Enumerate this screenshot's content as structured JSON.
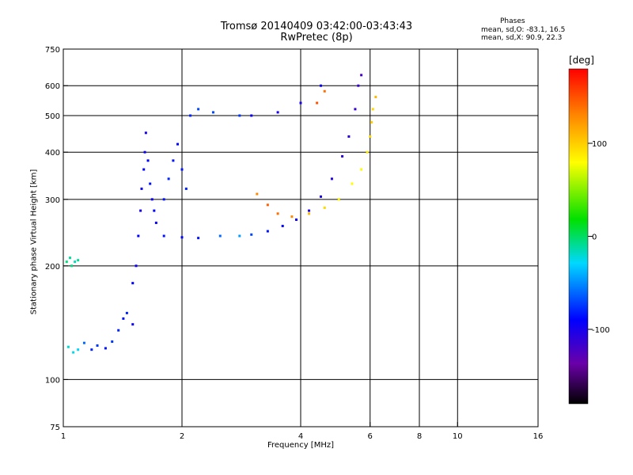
{
  "title": "Tromsø 20140409 03:42:00-03:43:43",
  "subtitle": "RwPretec (8p)",
  "stats": {
    "title": "Phases",
    "o_line": "mean, sd,O: -83.1, 16.5",
    "x_line": "mean, sd,X:  90.9, 22.3"
  },
  "colorbar": {
    "label": "[deg]",
    "range": [
      -180,
      180
    ],
    "ticks": [
      100,
      0,
      -100
    ],
    "colormap": "rainbow (black-purple-blue-cyan-green-yellow-red)"
  },
  "chart_data": {
    "type": "scatter",
    "title": "Tromsø 20140409 03:42:00-03:43:43",
    "subtitle": "RwPretec (8p)",
    "xlabel": "Frequency [MHz]",
    "ylabel": "Stationary phase Virtual Height [km]",
    "xscale": "log",
    "yscale": "log",
    "xlim": [
      1,
      16
    ],
    "ylim": [
      75,
      750
    ],
    "xticks": [
      1,
      2,
      4,
      6,
      8,
      10,
      16
    ],
    "yticks": [
      75,
      100,
      200,
      300,
      400,
      500,
      600,
      750
    ],
    "vgrid": [
      2,
      4,
      6,
      8,
      10
    ],
    "hgrid": [
      100,
      200,
      300,
      400,
      500,
      600
    ],
    "color_encoding": "phase [deg], -180 to 180",
    "series": [
      {
        "group": "low E/Es echoes",
        "points": [
          [
            1.02,
            205,
            -5
          ],
          [
            1.04,
            210,
            -10
          ],
          [
            1.05,
            200,
            -5
          ],
          [
            1.07,
            205,
            -15
          ],
          [
            1.09,
            207,
            -10
          ],
          [
            1.03,
            122,
            -20
          ],
          [
            1.06,
            118,
            -25
          ],
          [
            1.09,
            120,
            -30
          ],
          [
            1.13,
            125,
            -60
          ],
          [
            1.18,
            120,
            -80
          ],
          [
            1.22,
            123,
            -75
          ],
          [
            1.28,
            121,
            -85
          ],
          [
            1.33,
            126,
            -75
          ],
          [
            1.38,
            135,
            -80
          ],
          [
            1.42,
            145,
            -85
          ],
          [
            1.45,
            150,
            -80
          ],
          [
            1.5,
            140,
            -95
          ]
        ]
      },
      {
        "group": "F1 ordinary (steep rise)",
        "points": [
          [
            1.5,
            180,
            -90
          ],
          [
            1.53,
            200,
            -95
          ],
          [
            1.55,
            240,
            -90
          ],
          [
            1.57,
            280,
            -100
          ],
          [
            1.58,
            320,
            -95
          ],
          [
            1.6,
            360,
            -90
          ],
          [
            1.61,
            400,
            -95
          ],
          [
            1.62,
            450,
            -100
          ],
          [
            1.64,
            380,
            -90
          ],
          [
            1.66,
            330,
            -85
          ],
          [
            1.68,
            300,
            -95
          ],
          [
            1.7,
            280,
            -90
          ],
          [
            1.72,
            260,
            -95
          ]
        ]
      },
      {
        "group": "F1 second trace",
        "points": [
          [
            1.8,
            300,
            -85
          ],
          [
            1.85,
            340,
            -80
          ],
          [
            1.9,
            380,
            -85
          ],
          [
            1.95,
            420,
            -90
          ],
          [
            2.0,
            360,
            -85
          ],
          [
            2.05,
            320,
            -80
          ],
          [
            2.1,
            500,
            -80
          ],
          [
            2.2,
            520,
            -70
          ],
          [
            2.4,
            510,
            -70
          ],
          [
            2.8,
            500,
            -75
          ]
        ]
      },
      {
        "group": "F ordinary trace",
        "points": [
          [
            1.8,
            240,
            -85
          ],
          [
            2.0,
            238,
            -90
          ],
          [
            2.2,
            237,
            -85
          ],
          [
            2.5,
            240,
            -60
          ],
          [
            2.8,
            240,
            -45
          ],
          [
            3.0,
            242,
            -70
          ],
          [
            3.3,
            247,
            -85
          ],
          [
            3.6,
            255,
            -90
          ],
          [
            3.9,
            265,
            -95
          ],
          [
            4.2,
            280,
            -100
          ],
          [
            4.5,
            305,
            -100
          ],
          [
            4.8,
            340,
            -105
          ],
          [
            5.1,
            390,
            -110
          ],
          [
            5.3,
            440,
            -110
          ],
          [
            5.5,
            520,
            -115
          ],
          [
            5.6,
            600,
            -115
          ],
          [
            5.7,
            640,
            -120
          ],
          [
            3.0,
            500,
            -95
          ],
          [
            3.5,
            510,
            -100
          ],
          [
            4.0,
            540,
            -100
          ],
          [
            4.5,
            600,
            -95
          ]
        ]
      },
      {
        "group": "F extraordinary trace",
        "points": [
          [
            3.1,
            310,
            130
          ],
          [
            3.3,
            290,
            145
          ],
          [
            3.5,
            275,
            140
          ],
          [
            3.8,
            270,
            130
          ],
          [
            4.2,
            275,
            110
          ],
          [
            4.6,
            285,
            95
          ],
          [
            5.0,
            300,
            85
          ],
          [
            5.4,
            330,
            80
          ],
          [
            5.7,
            360,
            80
          ],
          [
            5.9,
            400,
            90
          ],
          [
            6.0,
            440,
            95
          ],
          [
            6.05,
            480,
            100
          ],
          [
            6.1,
            520,
            95
          ],
          [
            6.2,
            560,
            110
          ],
          [
            4.6,
            580,
            140
          ],
          [
            4.4,
            540,
            150
          ]
        ]
      }
    ]
  }
}
